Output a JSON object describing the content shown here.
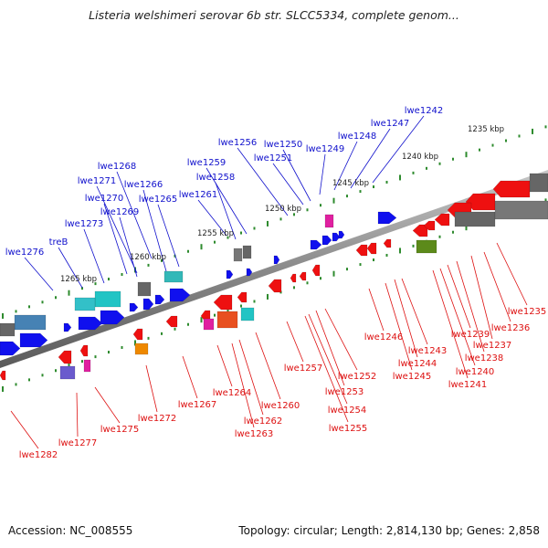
{
  "title": "Listeria welshimeri serovar 6b str. SLCC5334, complete genom...",
  "footer": {
    "accession": "Accession: NC_008555",
    "summary": "Topology: circular; Length: 2,814,130 bp; Genes: 2,858"
  },
  "colors": {
    "forward_label": "#1010cc",
    "reverse_label": "#dd1010",
    "backbone": "#8a8a8a",
    "tick": "#2e8b2e"
  },
  "scale_labels": [
    "1235 kbp",
    "1240 kbp",
    "1245 kbp",
    "1250 kbp",
    "1255 kbp",
    "1260 kbp",
    "1265 kbp"
  ],
  "forward_genes": [
    "lwe1242",
    "lwe1247",
    "lwe1248",
    "lwe1249",
    "lwe1250",
    "lwe1251",
    "lwe1256",
    "lwe1259",
    "lwe1258",
    "lwe1261",
    "lwe1268",
    "lwe1271",
    "lwe1266",
    "lwe1270",
    "lwe1265",
    "lwe1269",
    "lwe1273",
    "treB",
    "lwe1276"
  ],
  "reverse_genes": [
    "lwe1235",
    "lwe1236",
    "lwe1237",
    "lwe1238",
    "lwe1239",
    "lwe1240",
    "lwe1241",
    "lwe1243",
    "lwe1244",
    "lwe1245",
    "lwe1246",
    "lwe1252",
    "lwe1253",
    "lwe1254",
    "lwe1255",
    "lwe1257",
    "lwe1260",
    "lwe1262",
    "lwe1263",
    "lwe1264",
    "lwe1267",
    "lwe1272",
    "lwe1275",
    "lwe1277",
    "lwe1282"
  ]
}
